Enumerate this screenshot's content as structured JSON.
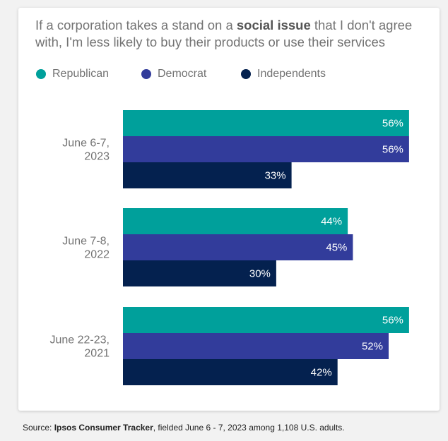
{
  "title": {
    "before": "If a corporation takes a stand on a ",
    "emphasis": "social issue",
    "after": " that I don't agree with, I'm less likely to buy their products or use their services"
  },
  "source": {
    "prefix": "Source: ",
    "name": "Ipsos Consumer Tracker",
    "suffix": ", fielded June 6 - 7, 2023 among 1,108 U.S. adults."
  },
  "chart_data": {
    "type": "bar",
    "orientation": "horizontal",
    "categories": [
      [
        "June 6-7,",
        "2023"
      ],
      [
        "June 7-8,",
        "2022"
      ],
      [
        "June 22-23,",
        "2021"
      ]
    ],
    "series": [
      {
        "name": "Republican",
        "color": "#00a09b",
        "values": [
          56,
          44,
          56
        ]
      },
      {
        "name": "Democrat",
        "color": "#323c9b",
        "values": [
          56,
          45,
          52
        ]
      },
      {
        "name": "Independents",
        "color": "#04214f",
        "values": [
          33,
          30,
          42
        ]
      }
    ],
    "value_suffix": "%",
    "xlim": [
      0,
      60
    ],
    "legend_position": "top-left",
    "grid": false
  }
}
